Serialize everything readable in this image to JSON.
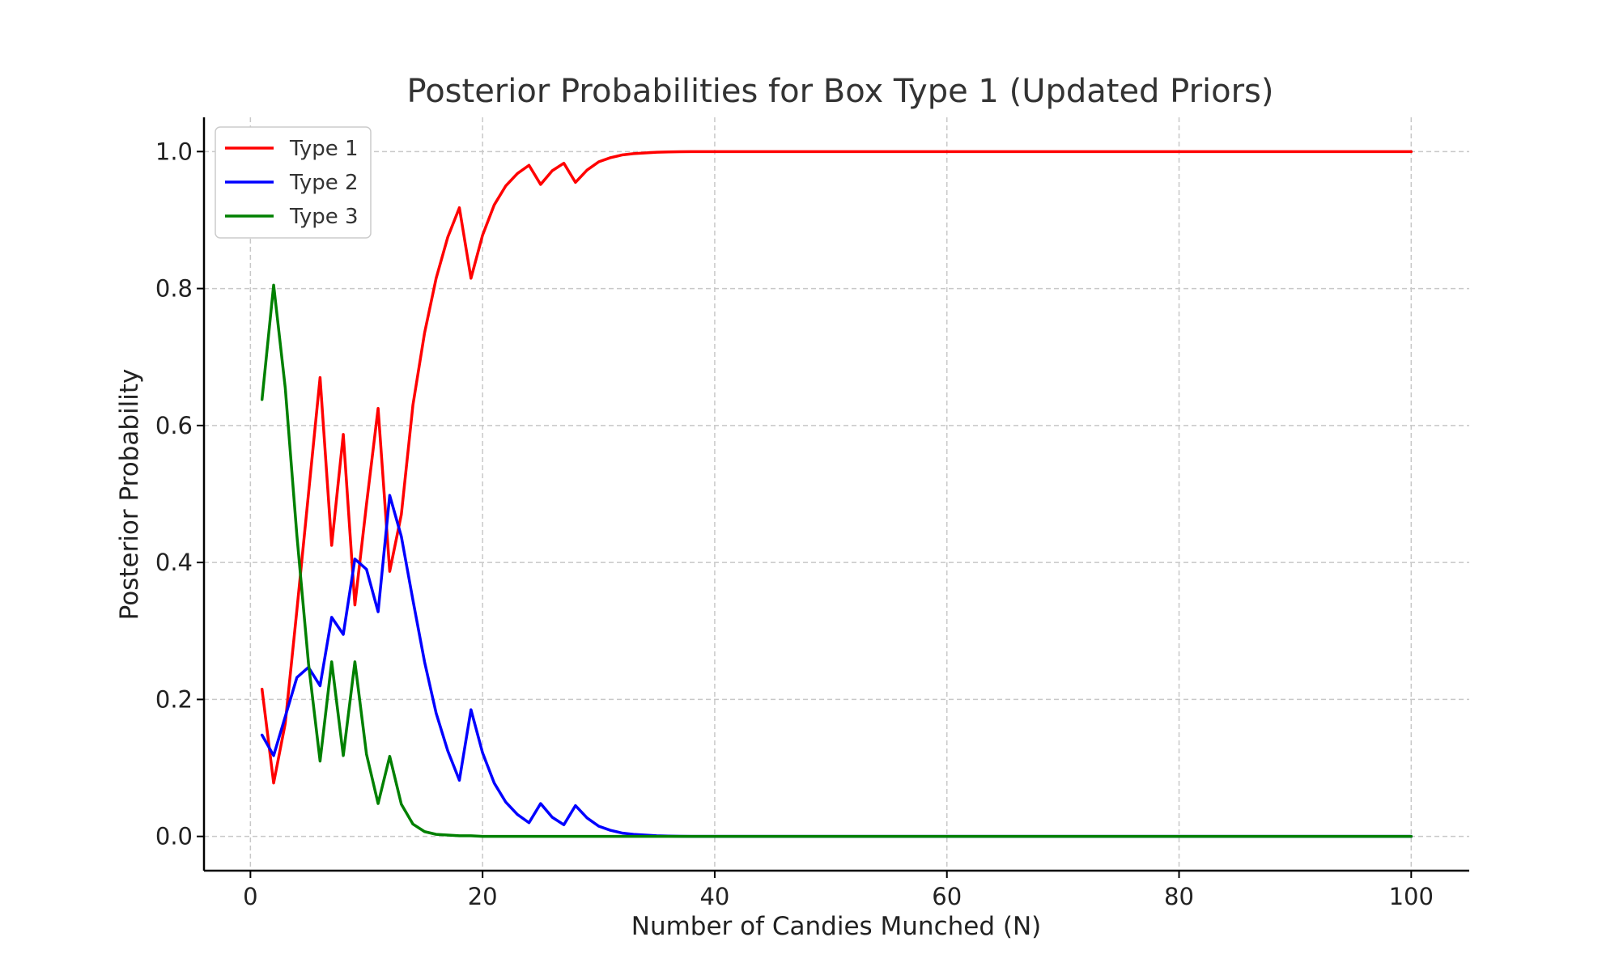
{
  "chart_data": {
    "type": "line",
    "title": "Posterior Probabilities for Box Type 1 (Updated Priors)",
    "xlabel": "Number of Candies Munched (N)",
    "ylabel": "Posterior Probability",
    "xlim": [
      -4,
      105
    ],
    "ylim": [
      -0.05,
      1.05
    ],
    "xticks": [
      0,
      20,
      40,
      60,
      80,
      100
    ],
    "yticks": [
      0.0,
      0.2,
      0.4,
      0.6,
      0.8,
      1.0
    ],
    "xtick_labels": [
      "0",
      "20",
      "40",
      "60",
      "80",
      "100"
    ],
    "ytick_labels": [
      "0.0",
      "0.2",
      "0.4",
      "0.6",
      "0.8",
      "1.0"
    ],
    "grid": true,
    "legend_position": "top-left",
    "x": [
      1,
      2,
      3,
      4,
      5,
      6,
      7,
      8,
      9,
      10,
      11,
      12,
      13,
      14,
      15,
      16,
      17,
      18,
      19,
      20,
      21,
      22,
      23,
      24,
      25,
      26,
      27,
      28,
      29,
      30,
      31,
      32,
      33,
      34,
      35,
      36,
      37,
      38,
      39,
      40,
      41,
      42,
      43,
      44,
      45,
      46,
      47,
      48,
      49,
      50,
      51,
      52,
      53,
      54,
      55,
      56,
      57,
      58,
      59,
      60,
      61,
      62,
      63,
      64,
      65,
      66,
      67,
      68,
      69,
      70,
      71,
      72,
      73,
      74,
      75,
      76,
      77,
      78,
      79,
      80,
      81,
      82,
      83,
      84,
      85,
      86,
      87,
      88,
      89,
      90,
      91,
      92,
      93,
      94,
      95,
      96,
      97,
      98,
      99,
      100
    ],
    "series": [
      {
        "name": "Type 1",
        "color": "#ff0000",
        "head": [
          0.215,
          0.078,
          0.165,
          0.33,
          0.5,
          0.67,
          0.425,
          0.587,
          0.338,
          0.485,
          0.625,
          0.387,
          0.47,
          0.63,
          0.735,
          0.815,
          0.875,
          0.918,
          0.815,
          0.878,
          0.922,
          0.95,
          0.968,
          0.98,
          0.952,
          0.972,
          0.983,
          0.955,
          0.973,
          0.985,
          0.991,
          0.995,
          0.997,
          0.998,
          0.999,
          0.9995,
          0.9998,
          0.9999,
          1.0,
          1.0
        ],
        "tail_value": 1.0
      },
      {
        "name": "Type 2",
        "color": "#0000ff",
        "head": [
          0.148,
          0.118,
          0.175,
          0.232,
          0.247,
          0.22,
          0.32,
          0.295,
          0.405,
          0.39,
          0.328,
          0.498,
          0.438,
          0.345,
          0.255,
          0.18,
          0.125,
          0.082,
          0.185,
          0.122,
          0.078,
          0.05,
          0.032,
          0.02,
          0.048,
          0.028,
          0.017,
          0.045,
          0.027,
          0.015,
          0.009,
          0.005,
          0.003,
          0.002,
          0.001,
          0.0005,
          0.0002,
          0.0001,
          0.0,
          0.0
        ],
        "tail_value": 0.0
      },
      {
        "name": "Type 3",
        "color": "#008000",
        "head": [
          0.638,
          0.805,
          0.655,
          0.44,
          0.253,
          0.11,
          0.255,
          0.118,
          0.255,
          0.12,
          0.048,
          0.117,
          0.047,
          0.018,
          0.007,
          0.003,
          0.002,
          0.001,
          0.001,
          0.0,
          0.0,
          0.0,
          0.0,
          0.0,
          0.0,
          0.0,
          0.0,
          0.0,
          0.0,
          0.0,
          0.0,
          0.0,
          0.0,
          0.0,
          0.0,
          0.0,
          0.0,
          0.0,
          0.0,
          0.0
        ],
        "tail_value": 0.0
      }
    ]
  }
}
